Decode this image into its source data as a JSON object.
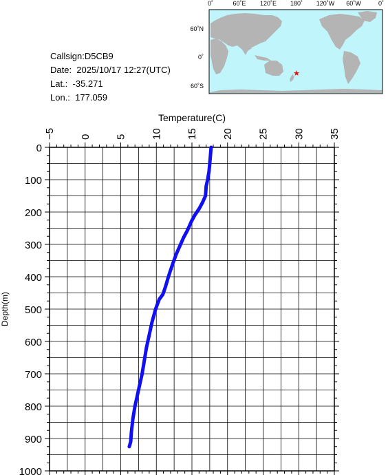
{
  "info": {
    "callsign": "Callsign:D5CB9",
    "date": "Date:  2025/10/17 12:27(UTC)",
    "lat": "Lat.:  -35.271",
    "lon": "Lon.:  177.059"
  },
  "map": {
    "top_labels": [
      "0˚",
      "60˚E",
      "120˚E",
      "180˚",
      "120˚W",
      "60˚W",
      "0˚"
    ],
    "left_labels": [
      "60˚N",
      "0˚",
      "60˚S"
    ],
    "ocean_color": "#bff5fb",
    "land_color": "#b4b4b4",
    "marker": {
      "lat": -35.271,
      "lon": 177.059,
      "color": "#ff0000",
      "symbol": "star"
    }
  },
  "chart_data": {
    "type": "line",
    "title": "",
    "xlabel": "Temperature(C)",
    "ylabel": "Depth(m)",
    "xlim": [
      -5,
      35
    ],
    "ylim": [
      1000,
      0
    ],
    "x_ticks": [
      "−5",
      "0",
      "5",
      "10",
      "15",
      "20",
      "25",
      "30",
      "35"
    ],
    "y_ticks": [
      "0",
      "100",
      "200",
      "300",
      "400",
      "500",
      "600",
      "700",
      "800",
      "900",
      "1000"
    ],
    "grid": true,
    "line_color": "#1010f0",
    "series": [
      {
        "x": [
          17.7,
          17.6,
          17.5,
          17.4,
          17.2,
          17.0,
          16.9,
          16.5,
          16.0,
          15.4,
          14.9,
          14.4,
          13.8,
          13.3,
          12.8,
          12.3,
          12.0,
          11.7,
          11.3,
          10.9,
          10.4,
          9.9,
          9.4,
          9.0,
          8.6,
          8.3,
          8.0,
          7.6,
          7.3,
          7.0,
          6.7,
          6.5,
          6.4,
          6.2
        ],
        "y": [
          0,
          25,
          50,
          75,
          100,
          120,
          150,
          170,
          190,
          210,
          230,
          255,
          280,
          305,
          330,
          360,
          380,
          400,
          430,
          455,
          470,
          500,
          540,
          580,
          620,
          660,
          700,
          740,
          770,
          800,
          840,
          880,
          910,
          925
        ]
      }
    ]
  }
}
